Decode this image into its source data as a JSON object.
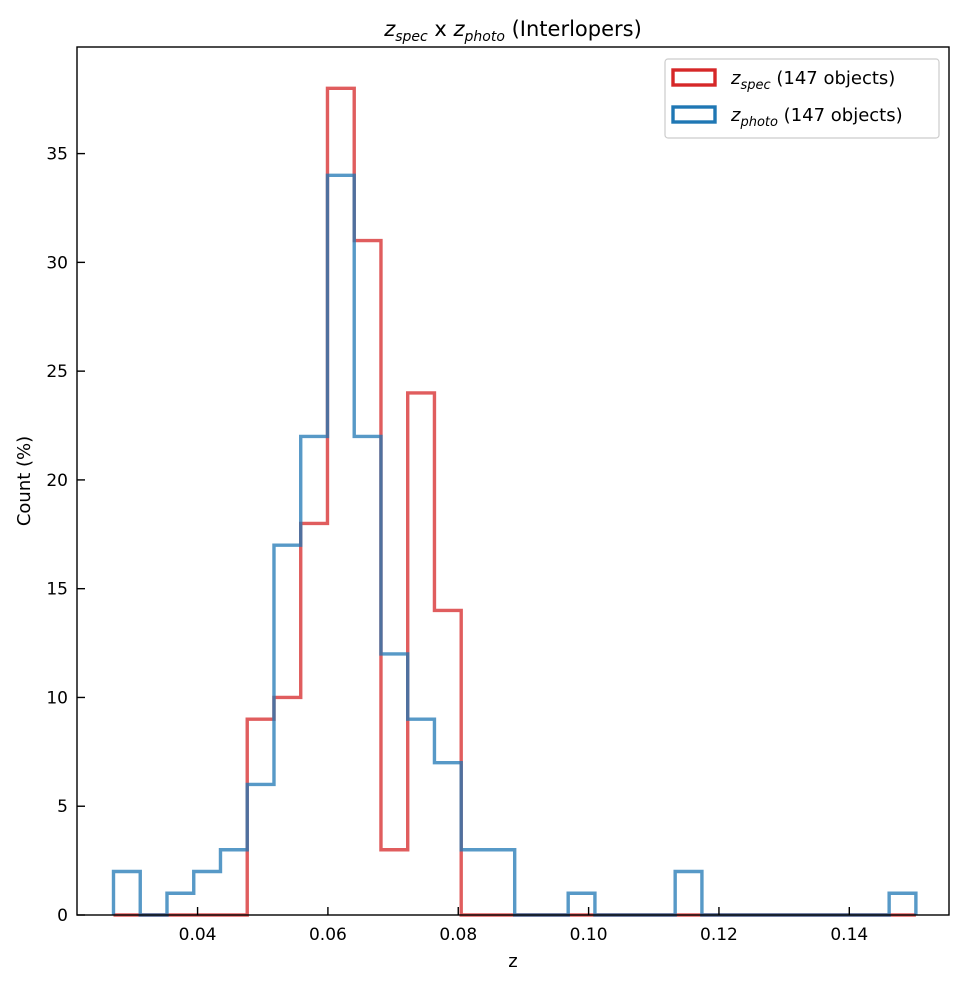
{
  "chart_data": {
    "type": "histogram",
    "title": {
      "z1": "z",
      "sub1": "spec",
      "mid": " x ",
      "z2": "z",
      "sub2": "photo",
      "suffix": " (Interlopers)"
    },
    "xlabel": "z",
    "ylabel": "Count (%)",
    "xlim": [
      0.0215,
      0.1553
    ],
    "ylim": [
      0,
      39.9
    ],
    "xticks": [
      0.04,
      0.06,
      0.08,
      0.1,
      0.12,
      0.14
    ],
    "xtick_labels": [
      "0.04",
      "0.06",
      "0.08",
      "0.10",
      "0.12",
      "0.14"
    ],
    "yticks": [
      0,
      5,
      10,
      15,
      20,
      25,
      30,
      35
    ],
    "ytick_labels": [
      "0",
      "5",
      "10",
      "15",
      "20",
      "25",
      "30",
      "35"
    ],
    "bin_start": 0.0271,
    "bin_width": 0.004104,
    "legend_position": "top-right",
    "series": [
      {
        "name": "z_spec",
        "z": "z",
        "sub": "spec",
        "label_suffix": " (147 objects)",
        "color": "#d62728",
        "values": [
          0,
          0,
          0,
          0,
          0,
          9,
          10,
          18,
          38,
          31,
          3,
          24,
          14,
          0,
          0,
          0,
          0,
          0,
          0,
          0,
          0,
          0,
          0,
          0,
          0,
          0,
          0,
          0,
          0,
          0
        ]
      },
      {
        "name": "z_photo",
        "z": "z",
        "sub": "photo",
        "label_suffix": " (147 objects)",
        "color": "#1f77b4",
        "values": [
          2,
          0,
          1,
          2,
          3,
          6,
          17,
          22,
          34,
          22,
          12,
          9,
          7,
          3,
          3,
          0,
          0,
          1,
          0,
          0,
          0,
          2,
          0,
          0,
          0,
          0,
          0,
          0,
          0,
          1
        ]
      }
    ]
  }
}
